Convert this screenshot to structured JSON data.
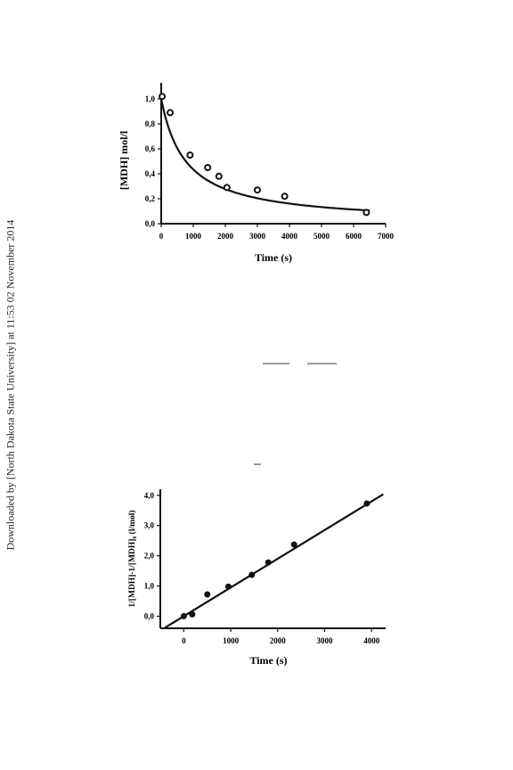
{
  "watermark": "Downloaded by [North Dakota State University] at 11:53 02 November 2014",
  "chart_data": [
    {
      "type": "scatter",
      "xlabel": "Time (s)",
      "ylabel": "[MDH] mol/l",
      "xlim": [
        0,
        7000
      ],
      "ylim": [
        0,
        1.1
      ],
      "xticks": [
        "0",
        "1000",
        "2000",
        "3000",
        "4000",
        "5000",
        "6000",
        "7000"
      ],
      "yticks": [
        "0,0",
        "0,2",
        "0,4",
        "0,6",
        "0,8",
        "1,0"
      ],
      "series": [
        {
          "kind": "points",
          "x": [
            30,
            280,
            900,
            1450,
            1800,
            2050,
            3000,
            3850,
            6400
          ],
          "y": [
            1.02,
            0.89,
            0.55,
            0.45,
            0.38,
            0.29,
            0.27,
            0.22,
            0.09
          ]
        },
        {
          "kind": "fit_curve",
          "model": "second-order decay",
          "y0": 1.0,
          "k": 0.0013
        }
      ]
    },
    {
      "type": "scatter",
      "xlabel": "Time (s)",
      "ylabel": "1/[MDH]-1/[MDH]₀ (l/mol)",
      "xlim": [
        -500,
        4300
      ],
      "ylim": [
        -0.4,
        4.2
      ],
      "xticks": [
        "0",
        "1000",
        "2000",
        "3000",
        "4000"
      ],
      "yticks": [
        "0,0",
        "1,0",
        "2,0",
        "3,0",
        "4,0"
      ],
      "series": [
        {
          "kind": "points",
          "x": [
            0,
            180,
            500,
            950,
            1450,
            1800,
            2350,
            3900
          ],
          "y": [
            0.0,
            0.06,
            0.72,
            0.98,
            1.37,
            1.78,
            2.37,
            3.73
          ]
        },
        {
          "kind": "fit_line",
          "slope": 0.00095,
          "intercept": 0.0,
          "x_range": [
            -400,
            4250
          ]
        }
      ]
    }
  ]
}
